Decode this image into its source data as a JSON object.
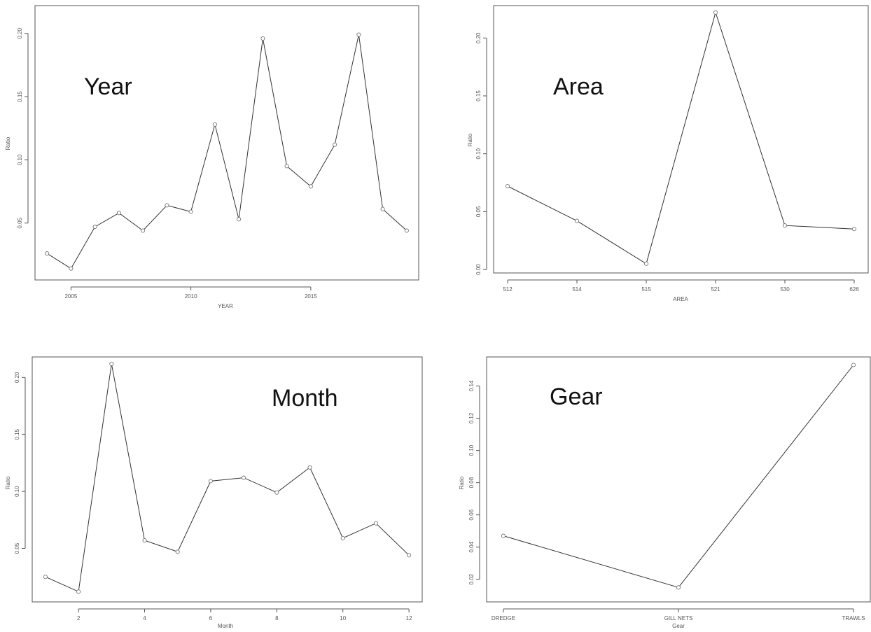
{
  "chart_data": [
    {
      "type": "line",
      "overlay_title": "Year",
      "xlabel": "YEAR",
      "ylabel": "Ratio",
      "xlim": [
        2003.5,
        2019.5
      ],
      "ylim": [
        0.005,
        0.222
      ],
      "xticks": [
        2005,
        2010,
        2015
      ],
      "xtick_labels": [
        "2005",
        "2010",
        "2015"
      ],
      "yticks": [
        0.05,
        0.1,
        0.15,
        0.2
      ],
      "ytick_labels": [
        "0.05",
        "0.10",
        "0.15",
        "0.20"
      ],
      "x": [
        2004,
        2005,
        2006,
        2007,
        2008,
        2009,
        2010,
        2011,
        2012,
        2013,
        2014,
        2015,
        2016,
        2017,
        2018,
        2019
      ],
      "values": [
        0.026,
        0.014,
        0.047,
        0.058,
        0.044,
        0.064,
        0.059,
        0.128,
        0.053,
        0.196,
        0.095,
        0.079,
        0.112,
        0.199,
        0.061,
        0.044
      ],
      "grid": false,
      "legend": "none"
    },
    {
      "type": "line",
      "overlay_title": "Area",
      "xlabel": "AREA",
      "ylabel": "Ratio",
      "ylim": [
        -0.003,
        0.228
      ],
      "categories": [
        "512",
        "514",
        "515",
        "521",
        "530",
        "626"
      ],
      "yticks": [
        0.0,
        0.05,
        0.1,
        0.15,
        0.2
      ],
      "ytick_labels": [
        "0.00",
        "0.05",
        "0.10",
        "0.15",
        "0.20"
      ],
      "values": [
        0.072,
        0.042,
        0.005,
        0.222,
        0.038,
        0.035
      ],
      "grid": false,
      "legend": "none"
    },
    {
      "type": "line",
      "overlay_title": "Month",
      "xlabel": "Month",
      "ylabel": "Ratio",
      "xlim": [
        0.6,
        12.4
      ],
      "ylim": [
        0.003,
        0.218
      ],
      "xticks": [
        2,
        4,
        6,
        8,
        10,
        12
      ],
      "xtick_labels": [
        "2",
        "4",
        "6",
        "8",
        "10",
        "12"
      ],
      "yticks": [
        0.05,
        0.1,
        0.15,
        0.2
      ],
      "ytick_labels": [
        "0.05",
        "0.10",
        "0.15",
        "0.20"
      ],
      "x": [
        1,
        2,
        3,
        4,
        5,
        6,
        7,
        8,
        9,
        10,
        11,
        12
      ],
      "values": [
        0.025,
        0.012,
        0.212,
        0.057,
        0.047,
        0.109,
        0.112,
        0.099,
        0.121,
        0.059,
        0.072,
        0.044
      ],
      "grid": false,
      "legend": "none"
    },
    {
      "type": "line",
      "overlay_title": "Gear",
      "xlabel": "Gear",
      "ylabel": "Ratio",
      "ylim": [
        0.006,
        0.158
      ],
      "categories": [
        "DREDGE",
        "GILL NETS",
        "TRAWLS"
      ],
      "yticks": [
        0.02,
        0.04,
        0.06,
        0.08,
        0.1,
        0.12,
        0.14
      ],
      "ytick_labels": [
        "0.02",
        "0.04",
        "0.06",
        "0.08",
        "0.10",
        "0.12",
        "0.14"
      ],
      "values": [
        0.047,
        0.015,
        0.153
      ],
      "grid": false,
      "legend": "none"
    }
  ]
}
